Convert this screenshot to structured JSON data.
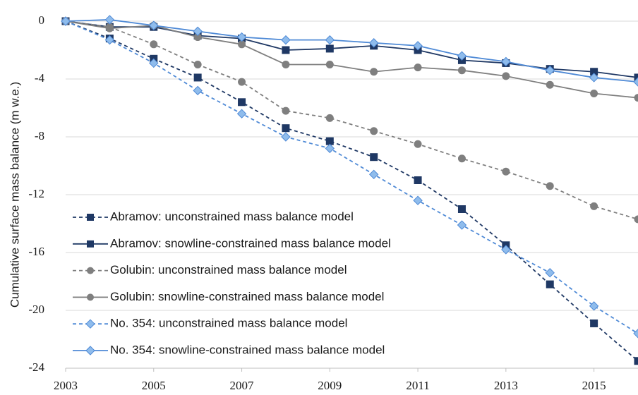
{
  "chart_data": {
    "type": "line",
    "y_label": "Cumulative surface mass balance (m w.e.)",
    "x": [
      2003,
      2004,
      2005,
      2006,
      2007,
      2008,
      2009,
      2010,
      2011,
      2012,
      2013,
      2014,
      2015,
      2016
    ],
    "xlim": [
      2003,
      2016
    ],
    "xticks": [
      2003,
      2005,
      2007,
      2009,
      2011,
      2013,
      2015
    ],
    "ylim": [
      -24,
      0
    ],
    "yticks": [
      0,
      -4,
      -8,
      -12,
      -16,
      -20,
      -24
    ],
    "grid": true,
    "legend": "lower-left",
    "series": [
      {
        "name": "Abramov: unconstrained mass balance model",
        "color": "#1f3864",
        "dash": true,
        "marker": "square",
        "values": [
          0,
          -1.2,
          -2.6,
          -3.9,
          -5.6,
          -7.4,
          -8.3,
          -9.4,
          -11.0,
          -13.0,
          -15.5,
          -18.2,
          -20.9,
          -23.5
        ]
      },
      {
        "name": "Abramov: snowline-constrained mass balance model",
        "color": "#1f3864",
        "dash": false,
        "marker": "square",
        "values": [
          0,
          -0.4,
          -0.4,
          -1.0,
          -1.2,
          -2.0,
          -1.9,
          -1.7,
          -2.0,
          -2.7,
          -2.9,
          -3.3,
          -3.5,
          -3.9
        ]
      },
      {
        "name": "Golubin: unconstrained mass balance model",
        "color": "#7f7f7f",
        "dash": true,
        "marker": "circle",
        "values": [
          0,
          -0.4,
          -1.6,
          -3.0,
          -4.2,
          -6.2,
          -6.7,
          -7.6,
          -8.5,
          -9.5,
          -10.4,
          -11.4,
          -12.8,
          -13.7
        ]
      },
      {
        "name": "Golubin: snowline-constrained mass balance model",
        "color": "#7f7f7f",
        "dash": false,
        "marker": "circle",
        "values": [
          0,
          -0.5,
          -0.3,
          -1.1,
          -1.6,
          -3.0,
          -3.0,
          -3.5,
          -3.2,
          -3.4,
          -3.8,
          -4.4,
          -5.0,
          -5.3
        ]
      },
      {
        "name": "No. 354: unconstrained mass balance model",
        "color": "#4f8ad6",
        "dash": true,
        "marker": "diamond",
        "values": [
          0,
          -1.3,
          -2.9,
          -4.8,
          -6.4,
          -8.0,
          -8.8,
          -10.6,
          -12.4,
          -14.1,
          -15.8,
          -17.4,
          -19.7,
          -21.6
        ]
      },
      {
        "name": "No. 354: snowline-constrained mass balance model",
        "color": "#4f8ad6",
        "dash": false,
        "marker": "diamond",
        "values": [
          0,
          0.1,
          -0.3,
          -0.7,
          -1.1,
          -1.3,
          -1.3,
          -1.5,
          -1.7,
          -2.4,
          -2.8,
          -3.4,
          -3.9,
          -4.2
        ]
      }
    ]
  }
}
